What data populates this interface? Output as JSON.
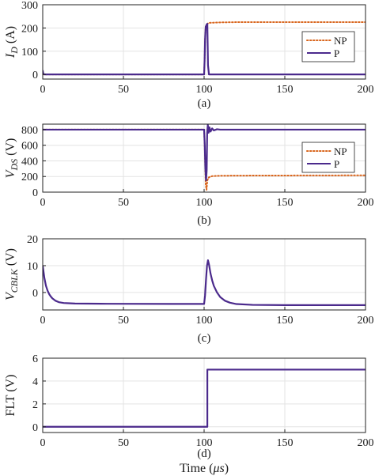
{
  "colors": {
    "P": "#4b2a8c",
    "NP": "#d9661e",
    "grid": "#e3e3e3",
    "axis": "#222222"
  },
  "chart_data": [
    {
      "id": "a",
      "type": "line",
      "ylabel_main": "I",
      "ylabel_sub": "D",
      "ylabel_unit": " (A)",
      "caption": "(a)",
      "xlim": [
        0,
        200
      ],
      "ylim": [
        -20,
        300
      ],
      "xticks": [
        0,
        50,
        100,
        150,
        200
      ],
      "yticks": [
        0,
        100,
        200,
        300
      ],
      "grid": true,
      "legend": {
        "placement": "right",
        "entries": [
          "NP",
          "P"
        ]
      },
      "series": [
        {
          "name": "NP",
          "style": "dotted",
          "color_key": "NP",
          "x": [
            0,
            100,
            100.3,
            100.6,
            101,
            101.6,
            102,
            103,
            110,
            120,
            150,
            200
          ],
          "y": [
            0,
            0,
            60,
            150,
            205,
            215,
            218,
            222,
            224,
            225,
            225,
            225
          ]
        },
        {
          "name": "P",
          "style": "solid",
          "color_key": "P",
          "x": [
            0,
            0.2,
            0.5,
            1,
            100,
            100.3,
            100.6,
            101,
            101.6,
            102,
            102.4,
            103,
            200
          ],
          "y": [
            18,
            8,
            2,
            0,
            0,
            60,
            150,
            205,
            215,
            218,
            40,
            0,
            0
          ]
        }
      ]
    },
    {
      "id": "b",
      "type": "line",
      "ylabel_main": "V",
      "ylabel_sub": "DS",
      "ylabel_unit": " (V)",
      "caption": "(b)",
      "xlim": [
        0,
        200
      ],
      "ylim": [
        0,
        870
      ],
      "xticks": [
        0,
        50,
        100,
        150,
        200
      ],
      "yticks": [
        0,
        200,
        400,
        600,
        800
      ],
      "grid": true,
      "legend": {
        "placement": "right",
        "entries": [
          "NP",
          "P"
        ]
      },
      "series": [
        {
          "name": "NP",
          "style": "dotted",
          "color_key": "NP",
          "x": [
            0,
            100,
            100.5,
            101,
            101.5,
            102,
            103,
            105,
            110,
            130,
            200
          ],
          "y": [
            800,
            800,
            500,
            100,
            30,
            150,
            190,
            205,
            210,
            212,
            215
          ]
        },
        {
          "name": "P",
          "style": "solid",
          "color_key": "P",
          "x": [
            0,
            100,
            100.4,
            100.8,
            101.2,
            101.6,
            101.9,
            102.3,
            102.8,
            103.3,
            104,
            105,
            106,
            108,
            110,
            200
          ],
          "y": [
            800,
            800,
            600,
            300,
            150,
            280,
            760,
            860,
            760,
            830,
            775,
            815,
            790,
            805,
            800,
            800
          ]
        }
      ]
    },
    {
      "id": "c",
      "type": "line",
      "ylabel_main": "V",
      "ylabel_sub": "CBLK",
      "ylabel_unit": " (V)",
      "caption": "(c)",
      "xlim": [
        0,
        200
      ],
      "ylim": [
        -6.5,
        20
      ],
      "xticks": [
        0,
        50,
        100,
        150,
        200
      ],
      "yticks": [
        0,
        10,
        20
      ],
      "grid": true,
      "series": [
        {
          "name": "P",
          "style": "solid",
          "color_key": "P",
          "x": [
            0,
            1,
            2,
            3,
            4,
            5,
            6,
            8,
            10,
            13,
            16,
            20,
            40,
            80,
            100,
            100.6,
            101.2,
            101.8,
            102.4,
            103,
            104,
            105,
            106,
            108,
            110,
            113,
            116,
            120,
            130,
            150,
            200
          ],
          "y": [
            10,
            5.5,
            2.5,
            0.7,
            -0.6,
            -1.5,
            -2.2,
            -3.1,
            -3.6,
            -3.9,
            -4.0,
            -4.1,
            -4.2,
            -4.25,
            -4.25,
            -1,
            5,
            10,
            12,
            10.5,
            7,
            4.5,
            2.5,
            0,
            -1.7,
            -3.1,
            -3.8,
            -4.3,
            -4.6,
            -4.7,
            -4.7
          ]
        }
      ]
    },
    {
      "id": "d",
      "type": "line",
      "ylabel_main": "FLT (V)",
      "ylabel_sub": "",
      "ylabel_unit": "",
      "caption": "(d)",
      "xlabel_main": "Time (",
      "xlabel_unit": "μs",
      "xlabel_end": ")",
      "xlim": [
        0,
        200
      ],
      "ylim": [
        -0.5,
        6
      ],
      "xticks": [
        0,
        50,
        100,
        150,
        200
      ],
      "yticks": [
        0,
        2,
        4,
        6
      ],
      "grid": true,
      "series": [
        {
          "name": "P",
          "style": "solid",
          "color_key": "P",
          "x": [
            0,
            102,
            102,
            200
          ],
          "y": [
            0,
            0,
            5,
            5
          ]
        }
      ]
    }
  ]
}
